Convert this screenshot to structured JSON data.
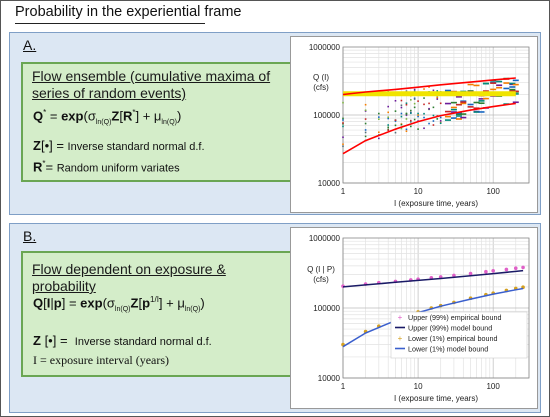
{
  "title": "Probability in the experiential frame",
  "panel_a": {
    "letter": "A.",
    "heading": "Flow ensemble (cumulative maxima of series of random events)",
    "z_def": "Inverse standard normal d.f.",
    "r_def": "Random uniform variates"
  },
  "panel_b": {
    "letter": "B.",
    "heading": "Flow dependent on exposure & probability",
    "z_def": "Inverse standard normal d.f.",
    "i_def": "I = exposure interval (years)"
  },
  "chart_data": [
    {
      "type": "scatter",
      "ylabel": "Q (I) (cfs)",
      "xlabel": "I (exposure time, years)",
      "xscale": "log",
      "yscale": "log",
      "xlim": [
        1,
        300
      ],
      "ylim": [
        10000,
        1000000
      ],
      "yticks": [
        "1000000",
        "100000",
        "10000"
      ],
      "xticks": [
        "1",
        "10",
        "100"
      ],
      "bands": [
        {
          "color": "#ff0000",
          "x": [
            1,
            2,
            5,
            10,
            20,
            50,
            100,
            200
          ],
          "y": [
            27000,
            42000,
            62000,
            80000,
            98000,
            118000,
            133000,
            148000
          ]
        },
        {
          "color": "#ff0000",
          "x": [
            1,
            2,
            5,
            10,
            20,
            50,
            100,
            200
          ],
          "y": [
            200000,
            218000,
            238000,
            256000,
            278000,
            305000,
            328000,
            350000
          ]
        }
      ],
      "median": {
        "color": "#f0e400",
        "x": [
          1,
          200
        ],
        "y": [
          205000,
          205000
        ]
      }
    },
    {
      "type": "line",
      "ylabel": "Q (I | P) (cfs)",
      "xlabel": "I (exposure time, years)",
      "xscale": "log",
      "yscale": "log",
      "xlim": [
        1,
        300
      ],
      "ylim": [
        10000,
        1000000
      ],
      "yticks": [
        "1000000",
        "100000",
        "10000"
      ],
      "xticks": [
        "1",
        "10",
        "100"
      ],
      "series": [
        {
          "name": "Upper (99%) empirical bound",
          "color": "#e060c8",
          "kind": "points",
          "x": [
            1,
            2,
            3,
            5,
            8,
            10,
            15,
            20,
            30,
            50,
            80,
            100,
            150,
            200,
            250
          ],
          "y": [
            205000,
            220000,
            230000,
            240000,
            252000,
            258000,
            270000,
            278000,
            292000,
            310000,
            330000,
            340000,
            355000,
            370000,
            380000
          ]
        },
        {
          "name": "Upper (99%) model bound",
          "color": "#1a1a66",
          "kind": "line",
          "x": [
            1,
            2,
            5,
            10,
            20,
            50,
            100,
            200,
            250
          ],
          "y": [
            200000,
            214000,
            233000,
            248000,
            264000,
            288000,
            310000,
            333000,
            342000
          ]
        },
        {
          "name": "Lower (1%) empirical bound",
          "color": "#d4a020",
          "kind": "points",
          "x": [
            1,
            2,
            3,
            5,
            8,
            10,
            15,
            20,
            30,
            50,
            80,
            100,
            150,
            200,
            250
          ],
          "y": [
            30000,
            46000,
            55000,
            68000,
            82000,
            88000,
            100000,
            108000,
            120000,
            138000,
            155000,
            163000,
            178000,
            190000,
            198000
          ]
        },
        {
          "name": "Lower (1%) model bound",
          "color": "#3a5fcd",
          "kind": "line",
          "x": [
            1,
            2,
            5,
            10,
            20,
            50,
            100,
            200,
            250
          ],
          "y": [
            28000,
            44000,
            66000,
            86000,
            106000,
            134000,
            158000,
            182000,
            190000
          ]
        }
      ]
    }
  ]
}
